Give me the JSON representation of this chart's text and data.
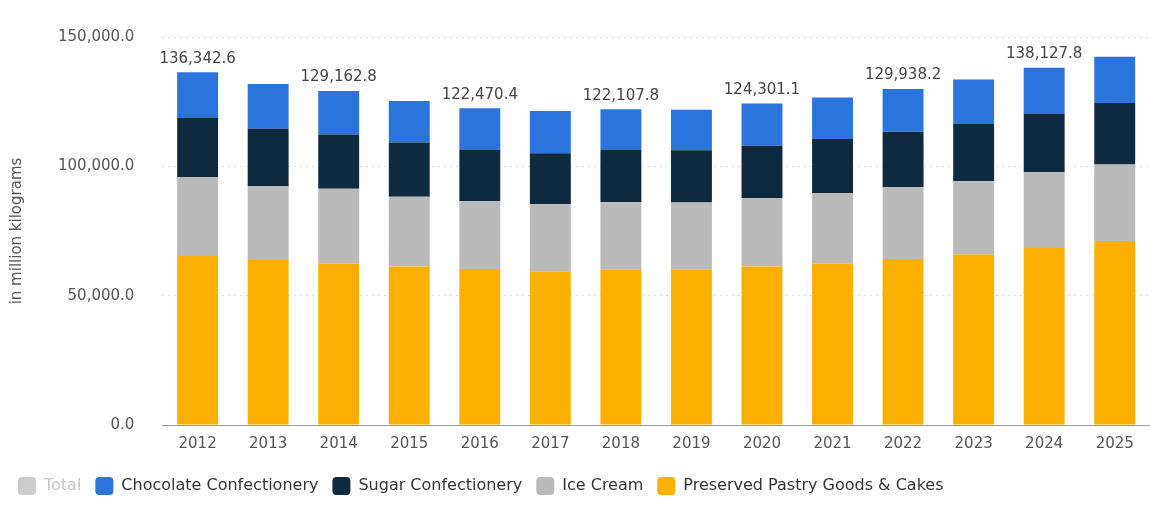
{
  "chart_data": {
    "type": "bar",
    "stacked": true,
    "ylabel": "in million kilograms",
    "categories": [
      "2012",
      "2013",
      "2014",
      "2015",
      "2016",
      "2017",
      "2018",
      "2019",
      "2020",
      "2021",
      "2022",
      "2023",
      "2024",
      "2025"
    ],
    "series": [
      {
        "name": "Preserved Pastry Goods & Cakes",
        "color": "#fbb000",
        "values": [
          65300,
          63800,
          62400,
          61300,
          60300,
          59400,
          60000,
          60000,
          61300,
          62400,
          64200,
          65900,
          68400,
          71100
        ]
      },
      {
        "name": "Ice Cream",
        "color": "#bababa",
        "values": [
          30600,
          28600,
          28900,
          26900,
          26200,
          25900,
          26100,
          26000,
          26500,
          27300,
          27800,
          28300,
          29300,
          29600
        ]
      },
      {
        "name": "Sugar Confectionery",
        "color": "#0f2a3e",
        "values": [
          22800,
          22100,
          21000,
          21000,
          19800,
          19800,
          20200,
          20200,
          20200,
          20900,
          21400,
          22200,
          22700,
          23800
        ]
      },
      {
        "name": "Chocolate Confectionery",
        "color": "#2a74db",
        "values": [
          17642.6,
          17300,
          16862.8,
          16100,
          16170.4,
          16300,
          15807.8,
          15700,
          16301.1,
          16000,
          16538.2,
          17200,
          17727.8,
          17900
        ]
      },
      {
        "name": "Total",
        "color": "#cccccc",
        "values": [
          null,
          null,
          null,
          null,
          null,
          null,
          null,
          null,
          null,
          null,
          null,
          null,
          null,
          null
        ]
      }
    ],
    "totals": [
      "136,342.6",
      null,
      "129,162.8",
      null,
      "122,470.4",
      null,
      "122,107.8",
      null,
      "124,301.1",
      null,
      "129,938.2",
      null,
      "138,127.8",
      null
    ],
    "ylim": [
      0,
      150000
    ],
    "yticks": [
      {
        "value": 0,
        "label": "0.0"
      },
      {
        "value": 50000,
        "label": "50,000.0"
      },
      {
        "value": 100000,
        "label": "100,000.0"
      },
      {
        "value": 150000,
        "label": "150,000.0"
      }
    ],
    "grid": "y",
    "legend": "bottom left"
  }
}
